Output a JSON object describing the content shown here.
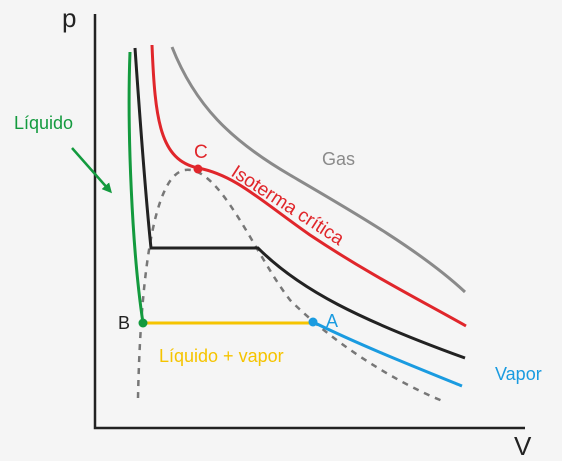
{
  "axes": {
    "y_label": "p",
    "x_label": "V"
  },
  "labels": {
    "liquid": "Líquido",
    "gas": "Gas",
    "critical_point": "C",
    "critical_isotherm": "Isoterma crítica",
    "point_a": "A",
    "point_b": "B",
    "mixture": "Líquido + vapor",
    "vapor": "Vapor"
  },
  "colors": {
    "background": "#f5f5f5",
    "axes": "#222222",
    "gas_isotherm": "#8a8a8a",
    "critical_isotherm": "#e0262b",
    "subcritical_isotherm": "#222222",
    "liquid": "#139a3e",
    "vapor": "#1a9be0",
    "mixture": "#f5c400",
    "dome": "#777777"
  }
}
